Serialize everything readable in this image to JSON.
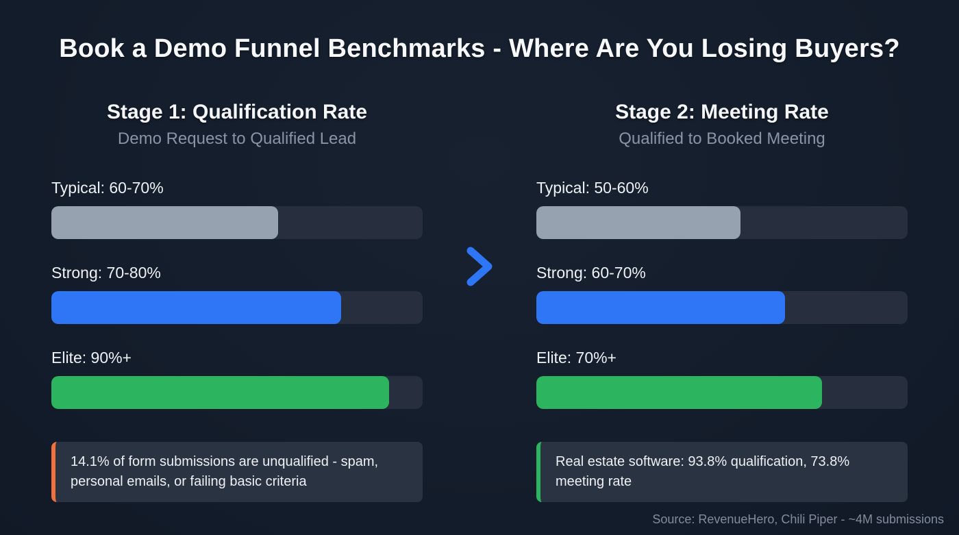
{
  "page": {
    "title": "Book a Demo Funnel Benchmarks - Where Are You Losing Buyers?",
    "source": "Source: RevenueHero, Chili Piper - ~4M submissions"
  },
  "colors": {
    "background": "#131c2a",
    "track": "#272f3e",
    "gray": "#97a2b0",
    "blue": "#2e76f6",
    "green": "#2cb45e",
    "orange": "#f0703e",
    "callout_bg": "#2a3341",
    "title_text": "#f7f9fc",
    "subtitle_text": "#8a94a6"
  },
  "stages": [
    {
      "title": "Stage 1: Qualification Rate",
      "subtitle": "Demo Request to Qualified Lead",
      "bars": [
        {
          "label": "Typical: 60-70%",
          "fill_percent": 61,
          "color": "gray"
        },
        {
          "label": "Strong: 70-80%",
          "fill_percent": 78,
          "color": "blue"
        },
        {
          "label": "Elite: 90%+",
          "fill_percent": 91,
          "color": "green"
        }
      ],
      "callout": {
        "text": "14.1% of form submissions are unqualified - spam, personal emails, or failing basic criteria",
        "accent": "#f0703e"
      }
    },
    {
      "title": "Stage 2: Meeting Rate",
      "subtitle": "Qualified to Booked Meeting",
      "bars": [
        {
          "label": "Typical: 50-60%",
          "fill_percent": 55,
          "color": "gray"
        },
        {
          "label": "Strong: 60-70%",
          "fill_percent": 67,
          "color": "blue"
        },
        {
          "label": "Elite: 70%+",
          "fill_percent": 77,
          "color": "green"
        }
      ],
      "callout": {
        "text": "Real estate software: 93.8% qualification, 73.8% meeting rate",
        "accent": "#2cb45e"
      }
    }
  ],
  "chart_data": [
    {
      "type": "bar",
      "orientation": "horizontal",
      "title": "Stage 1: Qualification Rate",
      "subtitle": "Demo Request to Qualified Lead",
      "categories": [
        "Typical: 60-70%",
        "Strong: 70-80%",
        "Elite: 90%+"
      ],
      "values": [
        61,
        78,
        91
      ],
      "xlim": [
        0,
        100
      ],
      "xlabel": "",
      "ylabel": "",
      "grid": false,
      "legend": false,
      "bar_colors": [
        "#97a2b0",
        "#2e76f6",
        "#2cb45e"
      ],
      "annotation": "14.1% of form submissions are unqualified - spam, personal emails, or failing basic criteria"
    },
    {
      "type": "bar",
      "orientation": "horizontal",
      "title": "Stage 2: Meeting Rate",
      "subtitle": "Qualified to Booked Meeting",
      "categories": [
        "Typical: 50-60%",
        "Strong: 60-70%",
        "Elite: 70%+"
      ],
      "values": [
        55,
        67,
        77
      ],
      "xlim": [
        0,
        100
      ],
      "xlabel": "",
      "ylabel": "",
      "grid": false,
      "legend": false,
      "bar_colors": [
        "#97a2b0",
        "#2e76f6",
        "#2cb45e"
      ],
      "annotation": "Real estate software: 93.8% qualification, 73.8% meeting rate"
    }
  ]
}
